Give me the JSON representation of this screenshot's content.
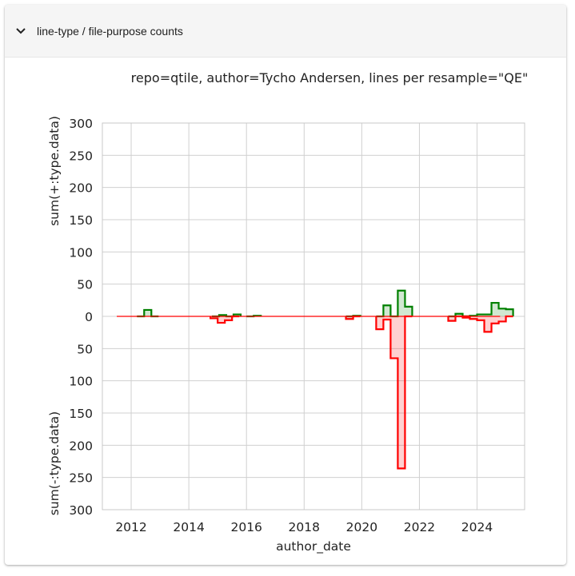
{
  "panel": {
    "title": "line-type / file-purpose counts",
    "expanded": true
  },
  "colors": {
    "added": "#008000",
    "removed": "#ff0000",
    "grid": "#d0d0d0"
  },
  "chart_data": {
    "type": "area",
    "title": "repo=qtile, author=Tycho Andersen, lines per resample=\"QE\"",
    "xlabel": "author_date",
    "ylabel_top": "sum(+:type.data)",
    "ylabel_bottom": "sum(-:type.data)",
    "xlim": [
      2011.0,
      2025.65
    ],
    "ylim": [
      -300,
      300
    ],
    "x_ticks": [
      2012,
      2014,
      2016,
      2018,
      2020,
      2022,
      2024
    ],
    "x_tick_labels": [
      "2012",
      "2014",
      "2016",
      "2018",
      "2020",
      "2022",
      "2024"
    ],
    "y_ticks": [
      300,
      250,
      200,
      150,
      100,
      50,
      0,
      -50,
      -100,
      -150,
      -200,
      -250,
      -300
    ],
    "y_tick_labels": [
      "300",
      "250",
      "200",
      "150",
      "100",
      "50",
      "0",
      "50",
      "100",
      "150",
      "200",
      "250",
      "300"
    ],
    "zero_line_x": [
      2011.5,
      2024.8
    ],
    "grid": true,
    "series": [
      {
        "name": "+",
        "step_x": [
          2012.2,
          2012.45,
          2012.7
        ],
        "step_y": [
          0,
          10,
          0
        ],
        "segments": [
          {
            "x": [
              2014.8,
              2015.05,
              2015.3,
              2015.55
            ],
            "y": [
              0,
              2,
              0,
              3
            ]
          },
          {
            "x": [
              2016.0,
              2016.25
            ],
            "y": [
              0,
              1
            ]
          },
          {
            "x": [
              2019.45,
              2019.7
            ],
            "y": [
              0,
              1
            ]
          },
          {
            "x": [
              2020.5,
              2020.75,
              2021.0,
              2021.25,
              2021.5
            ],
            "y": [
              0,
              17,
              0,
              40,
              15
            ]
          },
          {
            "x": [
              2023.0,
              2023.25,
              2023.5
            ],
            "y": [
              0,
              4,
              0
            ]
          },
          {
            "x": [
              2023.5,
              2023.75,
              2024.0,
              2024.25,
              2024.5,
              2024.75,
              2025.0
            ],
            "y": [
              0,
              1,
              3,
              3,
              21,
              12,
              11
            ]
          }
        ]
      },
      {
        "name": "-",
        "segments": [
          {
            "x": [
              2014.75,
              2015.0,
              2015.25,
              2015.5
            ],
            "y": [
              -3,
              -10,
              -6,
              0
            ]
          },
          {
            "x": [
              2019.45,
              2019.7
            ],
            "y": [
              -4,
              0
            ]
          },
          {
            "x": [
              2020.5,
              2020.75,
              2021.0,
              2021.25,
              2021.5
            ],
            "y": [
              -20,
              -5,
              -65,
              -236,
              0
            ]
          },
          {
            "x": [
              2023.0,
              2023.25,
              2023.5
            ],
            "y": [
              -7,
              0,
              0
            ]
          },
          {
            "x": [
              2023.5,
              2023.75,
              2024.0,
              2024.25,
              2024.5,
              2024.75,
              2025.0
            ],
            "y": [
              -2,
              -4,
              -6,
              -24,
              -11,
              -8,
              0
            ]
          }
        ]
      }
    ]
  }
}
